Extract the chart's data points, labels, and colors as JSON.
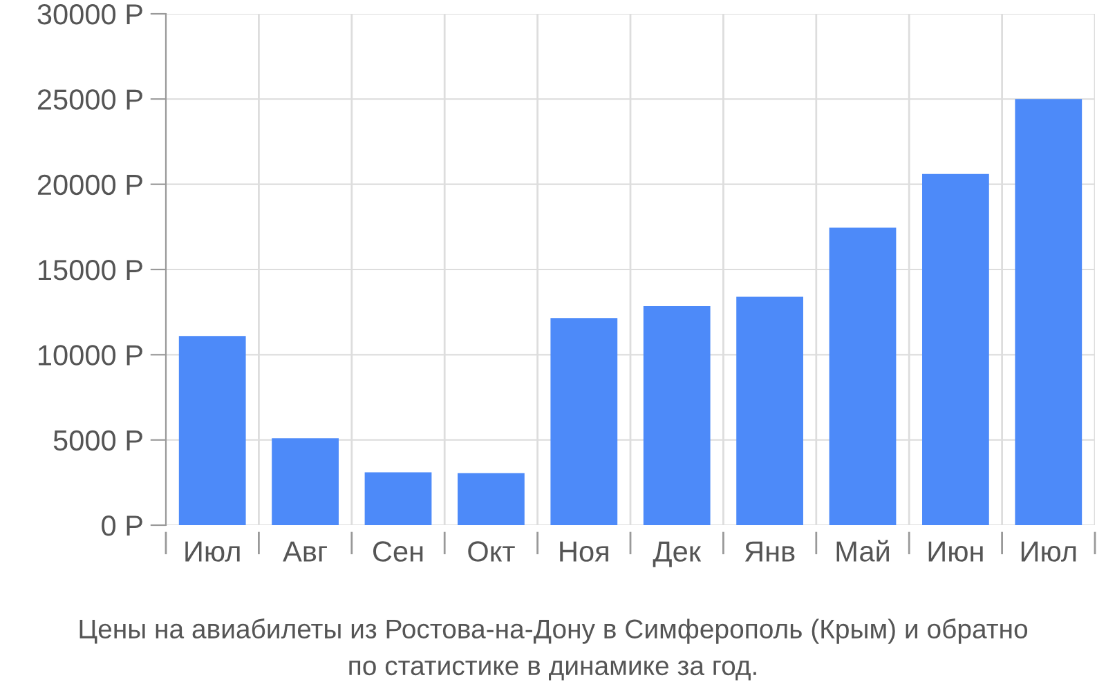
{
  "chart_data": {
    "type": "bar",
    "categories": [
      "Июл",
      "Авг",
      "Сен",
      "Окт",
      "Ноя",
      "Дек",
      "Янв",
      "Май",
      "Июн",
      "Июл"
    ],
    "values": [
      11100,
      5100,
      3100,
      3050,
      12150,
      12850,
      13400,
      17450,
      20600,
      25000
    ],
    "color": "#4d8af9",
    "ylim": [
      0,
      30000
    ],
    "yticks": [
      {
        "value": 0,
        "label": "0 Р"
      },
      {
        "value": 5000,
        "label": "5000 Р"
      },
      {
        "value": 10000,
        "label": "10000 Р"
      },
      {
        "value": 15000,
        "label": "15000 Р"
      },
      {
        "value": 20000,
        "label": "20000 Р"
      },
      {
        "value": 25000,
        "label": "25000 Р"
      },
      {
        "value": 30000,
        "label": "30000 Р"
      }
    ],
    "grid": true,
    "annotations": [
      "Цены на авиабилеты из Ростова-на-Дону в Симферополь (Крым) и обратно\nпо статистике в динамике за год."
    ]
  }
}
